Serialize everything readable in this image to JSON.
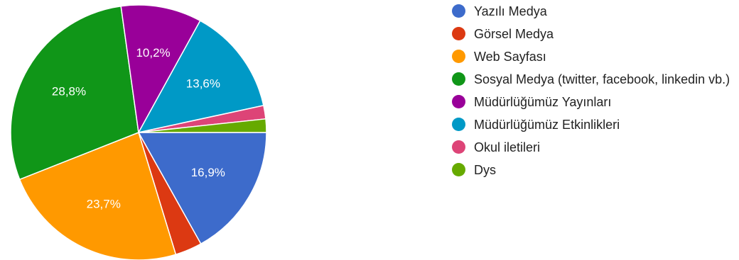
{
  "chart_data": {
    "type": "pie",
    "title": "",
    "legend_position": "right",
    "start_angle_deg": 90,
    "direction": "clockwise",
    "slices": [
      {
        "name": "Yazılı Medya",
        "value": 16.9,
        "label": "16,9%",
        "color": "#3d6bcb"
      },
      {
        "name": "Görsel Medya",
        "value": 3.4,
        "label": "",
        "color": "#dc3912"
      },
      {
        "name": "Web Sayfası",
        "value": 23.7,
        "label": "23,7%",
        "color": "#ff9900"
      },
      {
        "name": "Sosyal Medya (twitter, facebook, linkedin vb.)",
        "value": 28.8,
        "label": "28,8%",
        "color": "#109618"
      },
      {
        "name": "Müdürlüğümüz Yayınları",
        "value": 10.2,
        "label": "10,2%",
        "color": "#990099"
      },
      {
        "name": "Müdürlüğümüz Etkinlikleri",
        "value": 13.6,
        "label": "13,6%",
        "color": "#0099c6"
      },
      {
        "name": "Okul iletileri",
        "value": 1.7,
        "label": "",
        "color": "#dd4477"
      },
      {
        "name": "Dys",
        "value": 1.7,
        "label": "",
        "color": "#66aa00"
      }
    ]
  }
}
